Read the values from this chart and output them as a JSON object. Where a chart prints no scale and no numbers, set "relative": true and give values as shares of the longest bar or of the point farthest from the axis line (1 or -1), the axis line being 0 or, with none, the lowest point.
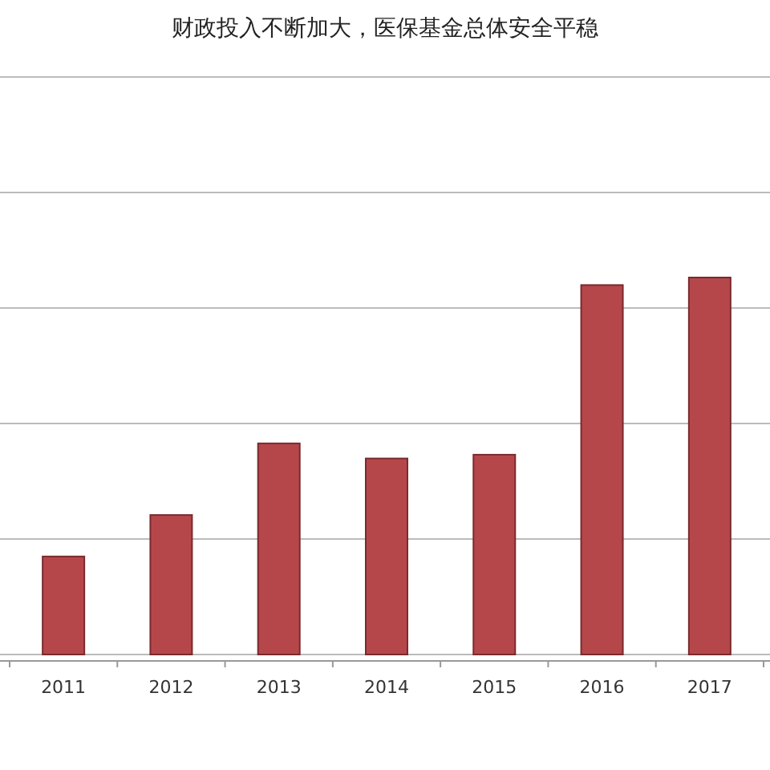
{
  "chart_data": {
    "type": "bar",
    "title": "财政投入不断加大，医保基金总体安全平稳",
    "categories": [
      "2011",
      "2012",
      "2013",
      "2014",
      "2015",
      "2016",
      "2017"
    ],
    "values": [
      0.26,
      0.37,
      0.56,
      0.52,
      0.53,
      0.98,
      1
    ],
    "color": "#b5474b",
    "relative": true,
    "grid": true
  }
}
